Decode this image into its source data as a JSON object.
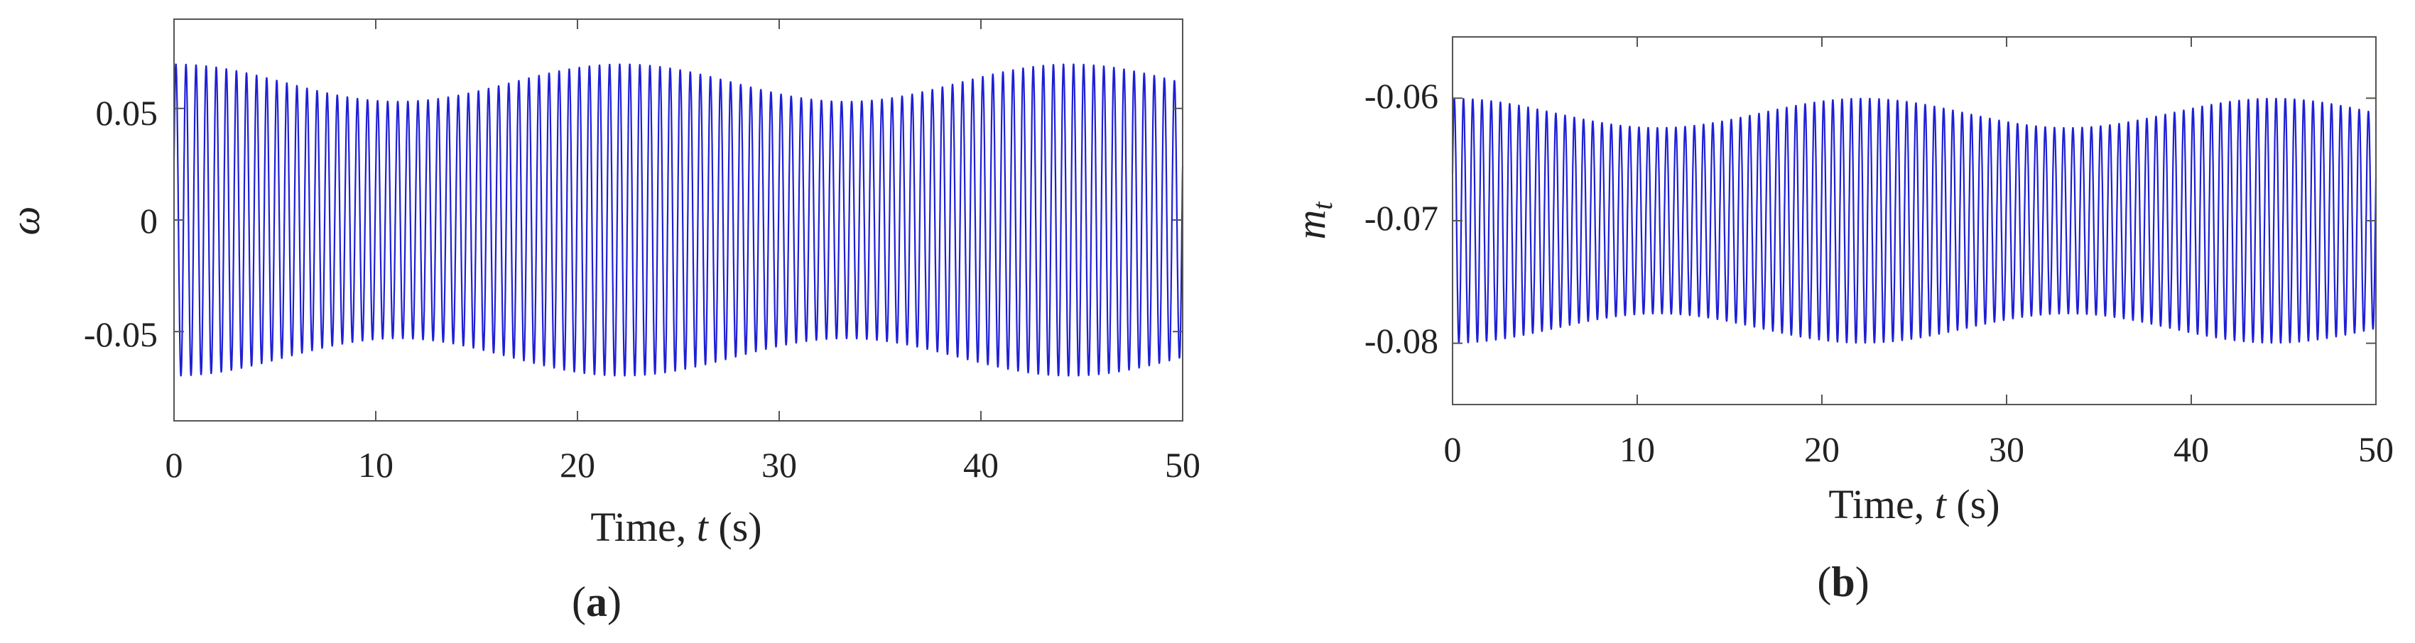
{
  "chart_data": [
    {
      "type": "line",
      "panel_label": {
        "open": "(",
        "letter": "a",
        "close": ")"
      },
      "xlabel": {
        "text": "Time, ",
        "var": "t",
        "unit": " (s)"
      },
      "ylabel": "ω",
      "xlim": [
        0,
        50
      ],
      "ylim": [
        -0.09,
        0.09
      ],
      "xticks": [
        0,
        10,
        20,
        30,
        40,
        50
      ],
      "xtick_labels": [
        "0",
        "10",
        "20",
        "30",
        "40",
        "50"
      ],
      "yticks": [
        0.05,
        0,
        -0.05
      ],
      "ytick_labels": [
        "0.05",
        "0",
        "-0.05"
      ],
      "grid": false,
      "series": [
        {
          "color": "#1f1fd6",
          "signal": {
            "form": "sinusoid",
            "center": 0,
            "amplitude": 0.07,
            "frequency_hz": 2.0,
            "t_start": 0,
            "t_end": 50
          }
        }
      ]
    },
    {
      "type": "line",
      "panel_label": {
        "open": "(",
        "letter": "b",
        "close": ")"
      },
      "xlabel": {
        "text": "Time, ",
        "var": "t",
        "unit": " (s)"
      },
      "ylabel": "m",
      "ylabel_subscript": "t",
      "xlim": [
        0,
        50
      ],
      "ylim": [
        -0.085,
        -0.055
      ],
      "xticks": [
        0,
        10,
        20,
        30,
        40,
        50
      ],
      "xtick_labels": [
        "0",
        "10",
        "20",
        "30",
        "40",
        "50"
      ],
      "yticks": [
        -0.06,
        -0.07,
        -0.08
      ],
      "ytick_labels": [
        "-0.06",
        "-0.07",
        "-0.08"
      ],
      "grid": false,
      "series": [
        {
          "color": "#1f1fd6",
          "signal": {
            "form": "sinusoid",
            "center": -0.07,
            "amplitude": 0.01,
            "frequency_hz": 2.0,
            "t_start": 0,
            "t_end": 50
          }
        }
      ]
    }
  ]
}
